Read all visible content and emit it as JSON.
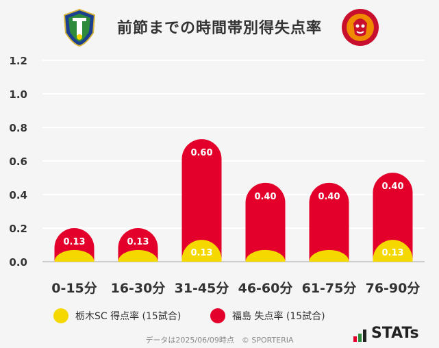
{
  "title": "前節までの時間帯別得失点率",
  "colors": {
    "team_a": "#f5d800",
    "team_b": "#e3002a",
    "label_on_red": "#ffffff",
    "label_on_yellow": "#ffffff",
    "grid": "#ffffff",
    "axis_text": "#333333"
  },
  "logos": {
    "left": "tochigi-sc-emblem",
    "right": "fukushima-united-emblem"
  },
  "legend": {
    "team_a": "栃木SC 得点率 (15試合)",
    "team_b": "福島 失点率 (15試合)"
  },
  "footer": "データは2025/06/09時点　© SPORTERIA",
  "brand": "STATs",
  "chart_data": {
    "type": "bar",
    "categories": [
      "0-15分",
      "16-30分",
      "31-45分",
      "46-60分",
      "61-75分",
      "76-90分"
    ],
    "series": [
      {
        "name": "栃木SC 得点率 (15試合)",
        "values": [
          0.07,
          0.07,
          0.13,
          0.07,
          0.07,
          0.13
        ],
        "labels": [
          "",
          "",
          "0.13",
          "",
          "",
          "0.13"
        ]
      },
      {
        "name": "福島 失点率 (15試合)",
        "values": [
          0.2,
          0.2,
          0.73,
          0.47,
          0.47,
          0.53
        ],
        "labels": [
          "0.13",
          "0.13",
          "0.60",
          "0.40",
          "0.40",
          "0.40"
        ]
      }
    ],
    "y_ticks": [
      "0.0",
      "0.2",
      "0.4",
      "0.6",
      "0.8",
      "1.0",
      "1.2"
    ],
    "ylim": [
      0,
      1.2
    ],
    "grid": true,
    "legend_position": "bottom"
  }
}
